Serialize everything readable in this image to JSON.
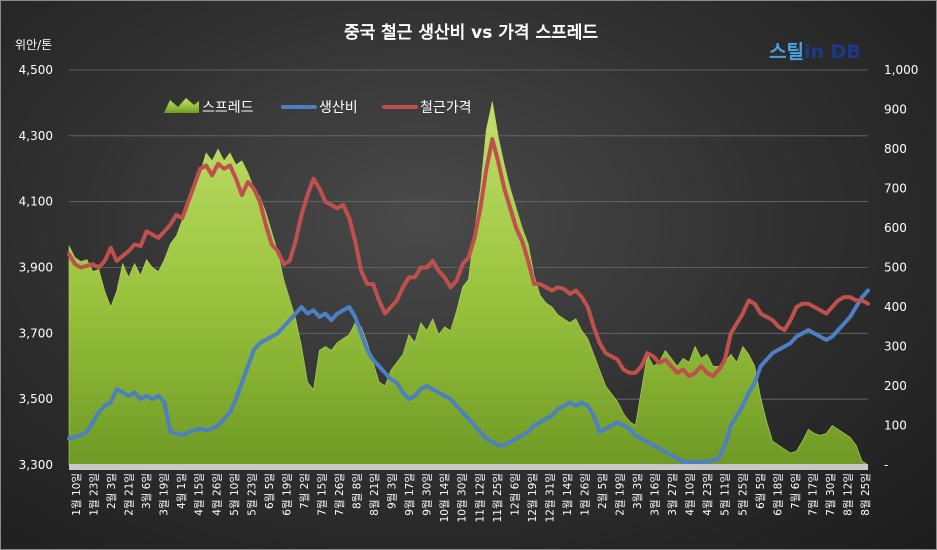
{
  "chart_data": {
    "type": "area+line",
    "title": "중국 철근 생산비 vs 가격 스프레드",
    "y_left_unit": "위안/톤",
    "y_left": {
      "min": 3300,
      "max": 4500,
      "ticks": [
        "3,300",
        "3,500",
        "3,700",
        "3,900",
        "4,100",
        "4,300",
        "4,500"
      ]
    },
    "y_right": {
      "min": 0,
      "max": 1000,
      "ticks": [
        "-",
        "100",
        "200",
        "300",
        "400",
        "500",
        "600",
        "700",
        "800",
        "900",
        "1,000"
      ]
    },
    "legend": [
      "스프레드",
      "생산비",
      "철근가격"
    ],
    "legend_placement": "top-left",
    "x_tick_labels": [
      "1월 10일",
      "1월 23일",
      "2월 3일",
      "2월 21일",
      "3월 6일",
      "3월 19일",
      "4월 1일",
      "4월 15일",
      "4월 26일",
      "5월 10일",
      "5월 23일",
      "6월 5일",
      "6월 19일",
      "7월 2일",
      "7월 15일",
      "7월 26일",
      "8월 8일",
      "8월 21일",
      "9월 3일",
      "9월 17일",
      "9월 30일",
      "10월 14일",
      "10월 30일",
      "11월 12일",
      "11월 25일",
      "12월 6일",
      "12월 19일",
      "12월 31일",
      "1월 14일",
      "1월 26일",
      "2월 5일",
      "2월 19일",
      "3월 3일",
      "3월 16일",
      "3월 27일",
      "4월 10일",
      "4월 23일",
      "5월 11일",
      "5월 25일",
      "6월 5일",
      "6월 18일",
      "7월 6일",
      "7월 17일",
      "7월 30일",
      "8월 12일",
      "8월 25일"
    ],
    "series": [
      {
        "name": "스프레드",
        "axis": "right",
        "values": [
          555,
          525,
          515,
          520,
          490,
          495,
          440,
          400,
          440,
          510,
          475,
          510,
          480,
          520,
          500,
          490,
          520,
          560,
          580,
          620,
          660,
          700,
          740,
          790,
          770,
          800,
          770,
          790,
          760,
          770,
          740,
          700,
          680,
          640,
          590,
          540,
          470,
          420,
          370,
          300,
          210,
          190,
          290,
          300,
          290,
          310,
          320,
          330,
          360,
          350,
          310,
          260,
          210,
          200,
          240,
          260,
          280,
          330,
          310,
          360,
          340,
          370,
          330,
          350,
          340,
          390,
          450,
          470,
          590,
          700,
          850,
          920,
          830,
          760,
          700,
          650,
          600,
          560,
          480,
          430,
          410,
          400,
          380,
          370,
          360,
          370,
          340,
          320,
          280,
          240,
          200,
          180,
          160,
          130,
          110,
          100,
          190,
          280,
          250,
          260,
          290,
          270,
          250,
          270,
          260,
          300,
          270,
          280,
          250,
          250,
          260,
          280,
          260,
          300,
          280,
          250,
          170,
          110,
          60,
          50,
          40,
          30,
          35,
          60,
          90,
          80,
          75,
          80,
          100,
          90,
          80,
          70,
          50,
          10,
          0
        ]
      },
      {
        "name": "생산비",
        "axis": "left",
        "values": [
          3380,
          3385,
          3390,
          3400,
          3430,
          3460,
          3480,
          3490,
          3530,
          3520,
          3510,
          3520,
          3500,
          3510,
          3500,
          3510,
          3490,
          3400,
          3395,
          3390,
          3400,
          3405,
          3410,
          3405,
          3410,
          3420,
          3440,
          3460,
          3500,
          3550,
          3600,
          3650,
          3670,
          3680,
          3690,
          3700,
          3720,
          3740,
          3760,
          3780,
          3760,
          3770,
          3750,
          3760,
          3740,
          3760,
          3770,
          3780,
          3750,
          3700,
          3650,
          3620,
          3600,
          3580,
          3560,
          3550,
          3520,
          3500,
          3510,
          3530,
          3540,
          3530,
          3520,
          3510,
          3500,
          3480,
          3460,
          3440,
          3420,
          3400,
          3380,
          3370,
          3360,
          3360,
          3370,
          3380,
          3390,
          3400,
          3420,
          3430,
          3440,
          3450,
          3470,
          3480,
          3490,
          3480,
          3490,
          3480,
          3450,
          3400,
          3410,
          3420,
          3430,
          3420,
          3410,
          3390,
          3380,
          3370,
          3360,
          3350,
          3340,
          3330,
          3320,
          3310,
          3310,
          3310,
          3310,
          3310,
          3315,
          3320,
          3360,
          3420,
          3450,
          3480,
          3520,
          3550,
          3600,
          3620,
          3640,
          3650,
          3660,
          3670,
          3690,
          3700,
          3710,
          3700,
          3690,
          3680,
          3690,
          3710,
          3730,
          3750,
          3780,
          3810,
          3830
        ]
      },
      {
        "name": "철근가격",
        "axis": "left",
        "values": [
          3940,
          3910,
          3900,
          3905,
          3910,
          3900,
          3920,
          3960,
          3920,
          3935,
          3950,
          3970,
          3965,
          4010,
          4000,
          3990,
          4010,
          4030,
          4060,
          4050,
          4100,
          4150,
          4200,
          4210,
          4180,
          4215,
          4200,
          4210,
          4170,
          4120,
          4160,
          4140,
          4100,
          4030,
          3970,
          3950,
          3910,
          3920,
          3980,
          4060,
          4120,
          4170,
          4140,
          4100,
          4090,
          4080,
          4090,
          4050,
          3980,
          3890,
          3850,
          3850,
          3800,
          3760,
          3780,
          3800,
          3840,
          3870,
          3870,
          3900,
          3900,
          3920,
          3890,
          3870,
          3840,
          3860,
          3910,
          3930,
          3990,
          4080,
          4200,
          4290,
          4220,
          4140,
          4080,
          4020,
          3980,
          3920,
          3850,
          3850,
          3840,
          3830,
          3840,
          3835,
          3820,
          3830,
          3810,
          3780,
          3720,
          3670,
          3640,
          3630,
          3620,
          3590,
          3580,
          3580,
          3600,
          3640,
          3630,
          3610,
          3620,
          3600,
          3580,
          3590,
          3570,
          3580,
          3600,
          3580,
          3570,
          3590,
          3620,
          3700,
          3730,
          3760,
          3800,
          3790,
          3760,
          3750,
          3740,
          3720,
          3710,
          3740,
          3780,
          3790,
          3790,
          3780,
          3770,
          3760,
          3780,
          3800,
          3810,
          3810,
          3800,
          3800,
          3790
        ]
      }
    ]
  },
  "watermark": {
    "text": "스틸in DB",
    "colors": [
      "#4aa3e0",
      "#1b3b8a"
    ]
  },
  "colors": {
    "spread_fill": "#9bc33f",
    "cost_line": "#4c7fc4",
    "price_line": "#c0504d",
    "grid": "#6b6b6b"
  }
}
